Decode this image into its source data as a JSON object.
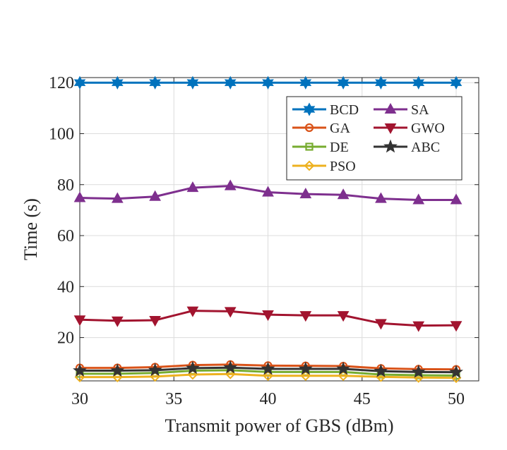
{
  "chart_data": {
    "type": "line",
    "title": "",
    "xlabel": "Transmit power of GBS (dBm)",
    "ylabel": "Time (s)",
    "x": [
      30,
      32,
      34,
      36,
      38,
      40,
      42,
      44,
      46,
      48,
      50
    ],
    "xlim": [
      30,
      51.2
    ],
    "ylim": [
      3,
      122
    ],
    "xticks": [
      30,
      35,
      40,
      45,
      50
    ],
    "yticks": [
      20,
      40,
      60,
      80,
      100,
      120
    ],
    "grid": true,
    "legend_position": "top-right",
    "series": [
      {
        "name": "BCD",
        "color": "#0072BD",
        "marker": "hexagram",
        "values": [
          120,
          120,
          120,
          120,
          120,
          120,
          120,
          120,
          120,
          120,
          120
        ]
      },
      {
        "name": "GA",
        "color": "#D95319",
        "marker": "circle",
        "values": [
          8.1,
          8.1,
          8.4,
          9.2,
          9.4,
          9.0,
          8.9,
          8.8,
          7.9,
          7.6,
          7.5
        ]
      },
      {
        "name": "DE",
        "color": "#77AC30",
        "marker": "square",
        "values": [
          5.8,
          5.8,
          6.1,
          7.0,
          7.2,
          6.5,
          6.5,
          6.5,
          5.5,
          5.2,
          5.1
        ]
      },
      {
        "name": "PSO",
        "color": "#EDB120",
        "marker": "diamond",
        "values": [
          4.5,
          4.5,
          4.7,
          5.5,
          5.7,
          5.0,
          5.0,
          5.0,
          4.6,
          4.3,
          4.2
        ]
      },
      {
        "name": "SA",
        "color": "#7E2F8E",
        "marker": "triangle-up",
        "values": [
          74.8,
          74.5,
          75.3,
          78.8,
          79.5,
          77.0,
          76.3,
          76.0,
          74.5,
          74.0,
          74.0
        ]
      },
      {
        "name": "GWO",
        "color": "#A2142F",
        "marker": "triangle-down",
        "values": [
          27.0,
          26.6,
          26.8,
          30.5,
          30.3,
          29.0,
          28.7,
          28.7,
          25.6,
          24.7,
          24.8
        ]
      },
      {
        "name": "ABC",
        "color": "#333333",
        "marker": "pentagram",
        "values": [
          7.0,
          7.0,
          7.2,
          8.0,
          8.2,
          7.7,
          7.7,
          7.7,
          6.8,
          6.5,
          6.4
        ]
      }
    ]
  }
}
